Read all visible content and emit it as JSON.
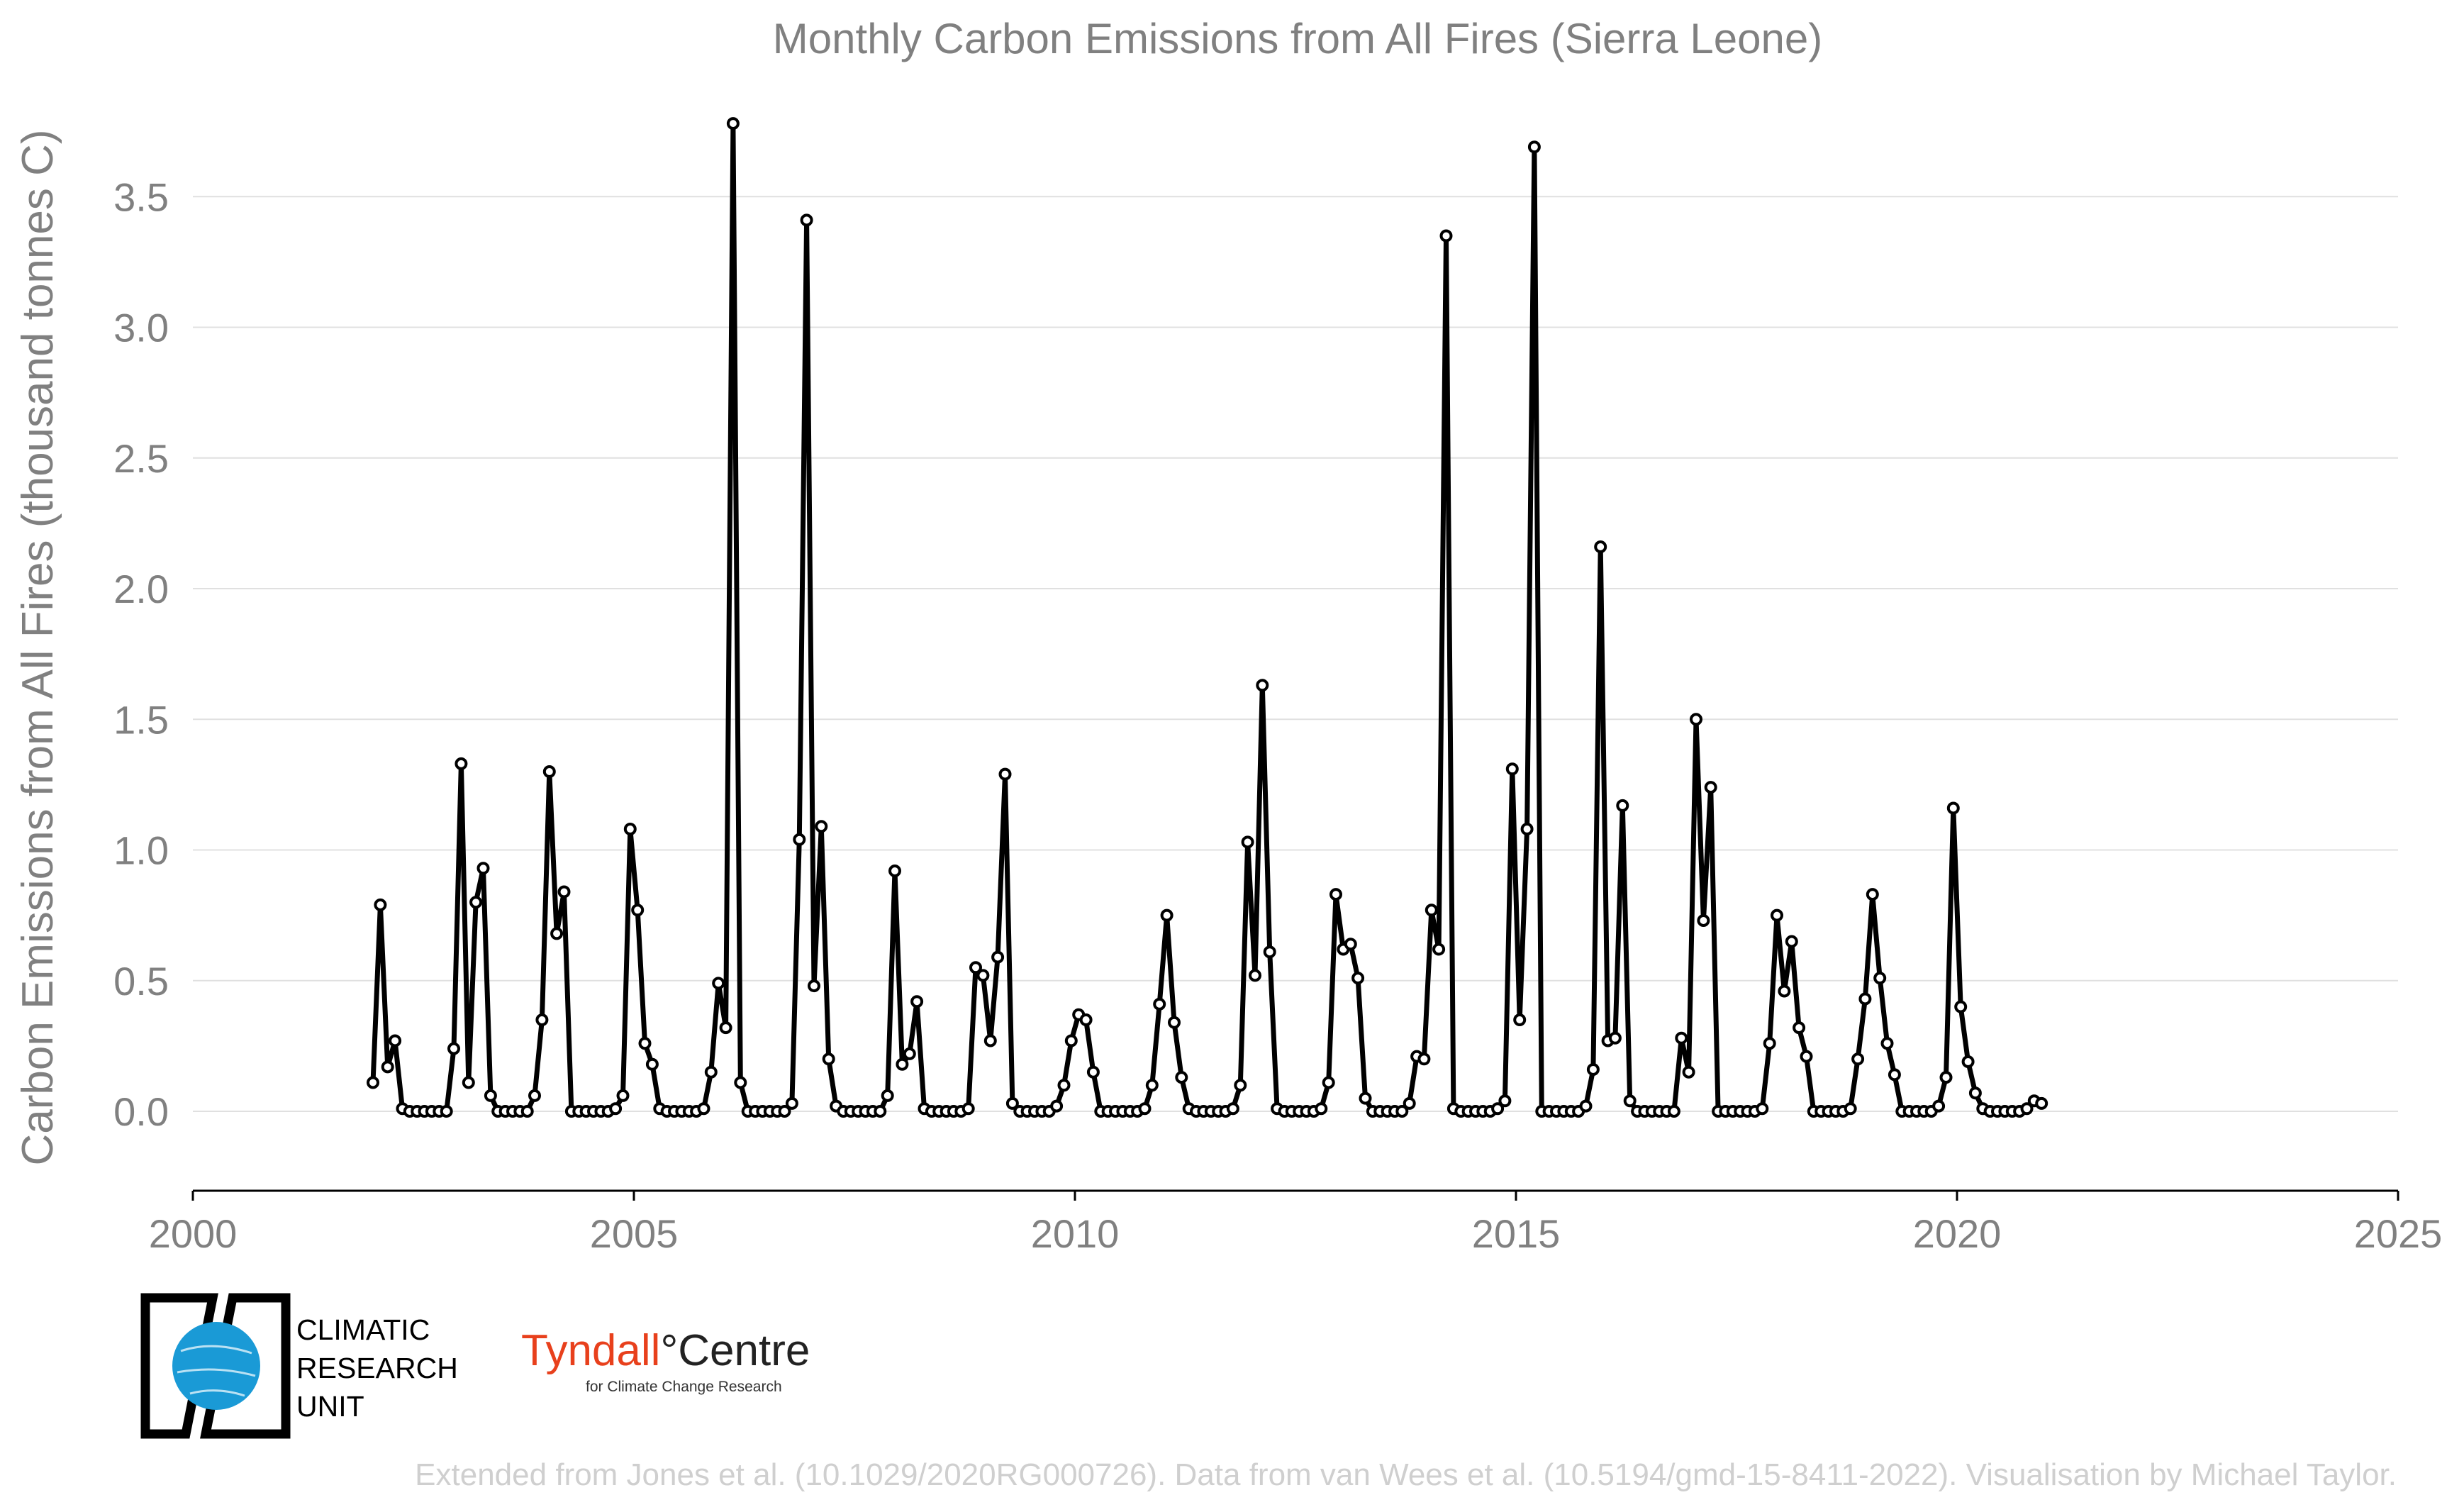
{
  "footer_text": "Extended from Jones et al. (10.1029/2020RG000726). Data from van Wees et al. (10.5194/gmd-15-8411-2022). Visualisation by Michael Taylor.",
  "logos": {
    "cru_lines": [
      "CLIMATIC",
      "RESEARCH",
      "UNIT"
    ],
    "tyndall_red": "Tyndall",
    "tyndall_degree": "°",
    "tyndall_black": "Centre",
    "tyndall_sub": "for Climate Change Research",
    "cru_globe_color": "#1a9ad6",
    "tyndall_color": "#e8401c"
  },
  "chart_data": {
    "type": "line",
    "title": "Monthly Carbon Emissions from All Fires (Sierra Leone)",
    "xlabel": "",
    "ylabel": "Carbon Emissions from All Fires (thousand tonnes C)",
    "xlim": [
      2000,
      2025
    ],
    "ylim": [
      -0.3,
      3.85
    ],
    "xticks": [
      2000,
      2005,
      2010,
      2015,
      2020,
      2025
    ],
    "yticks": [
      0.0,
      0.5,
      1.0,
      1.5,
      2.0,
      2.5,
      3.0,
      3.5
    ],
    "ytick_labels": [
      "0.0",
      "0.5",
      "1.0",
      "1.5",
      "2.0",
      "2.5",
      "3.0",
      "3.5"
    ],
    "grid": "horizontal",
    "line_color": "#000000",
    "marker": "open-circle",
    "series": [
      {
        "start": "2002-01",
        "frequency": "monthly",
        "values": [
          0.11,
          0.79,
          0.17,
          0.27,
          0.01,
          0.0,
          0.0,
          0.0,
          0.0,
          0.0,
          0.0,
          0.24,
          1.33,
          0.11,
          0.8,
          0.93,
          0.06,
          0.0,
          0.0,
          0.0,
          0.0,
          0.0,
          0.06,
          0.35,
          1.3,
          0.68,
          0.84,
          0.0,
          0.0,
          0.0,
          0.0,
          0.0,
          0.0,
          0.01,
          0.06,
          1.08,
          0.77,
          0.26,
          0.18,
          0.01,
          0.0,
          0.0,
          0.0,
          0.0,
          0.0,
          0.01,
          0.15,
          0.49,
          0.32,
          3.78,
          0.11,
          0.0,
          0.0,
          0.0,
          0.0,
          0.0,
          0.0,
          0.03,
          1.04,
          3.41,
          0.48,
          1.09,
          0.2,
          0.02,
          0.0,
          0.0,
          0.0,
          0.0,
          0.0,
          0.0,
          0.06,
          0.92,
          0.18,
          0.22,
          0.42,
          0.01,
          0.0,
          0.0,
          0.0,
          0.0,
          0.0,
          0.01,
          0.55,
          0.52,
          0.27,
          0.59,
          1.29,
          0.03,
          0.0,
          0.0,
          0.0,
          0.0,
          0.0,
          0.02,
          0.1,
          0.27,
          0.37,
          0.35,
          0.15,
          0.0,
          0.0,
          0.0,
          0.0,
          0.0,
          0.0,
          0.01,
          0.1,
          0.41,
          0.75,
          0.34,
          0.13,
          0.01,
          0.0,
          0.0,
          0.0,
          0.0,
          0.0,
          0.01,
          0.1,
          1.03,
          0.52,
          1.63,
          0.61,
          0.01,
          0.0,
          0.0,
          0.0,
          0.0,
          0.0,
          0.01,
          0.11,
          0.83,
          0.62,
          0.64,
          0.51,
          0.05,
          0.0,
          0.0,
          0.0,
          0.0,
          0.0,
          0.03,
          0.21,
          0.2,
          0.77,
          0.62,
          3.35,
          0.01,
          0.0,
          0.0,
          0.0,
          0.0,
          0.0,
          0.01,
          0.04,
          1.31,
          0.35,
          1.08,
          3.69,
          0.0,
          0.0,
          0.0,
          0.0,
          0.0,
          0.0,
          0.02,
          0.16,
          2.16,
          0.27,
          0.28,
          1.17,
          0.04,
          0.0,
          0.0,
          0.0,
          0.0,
          0.0,
          0.0,
          0.28,
          0.15,
          1.5,
          0.73,
          1.24,
          0.0,
          0.0,
          0.0,
          0.0,
          0.0,
          0.0,
          0.01,
          0.26,
          0.75,
          0.46,
          0.65,
          0.32,
          0.21,
          0.0,
          0.0,
          0.0,
          0.0,
          0.0,
          0.01,
          0.2,
          0.43,
          0.83,
          0.51,
          0.26,
          0.14,
          0.0,
          0.0,
          0.0,
          0.0,
          0.0,
          0.02,
          0.13,
          1.16,
          0.4,
          0.19,
          0.07,
          0.01,
          0.0,
          0.0,
          0.0,
          0.0,
          0.0,
          0.01,
          0.04,
          0.03
        ]
      }
    ]
  }
}
